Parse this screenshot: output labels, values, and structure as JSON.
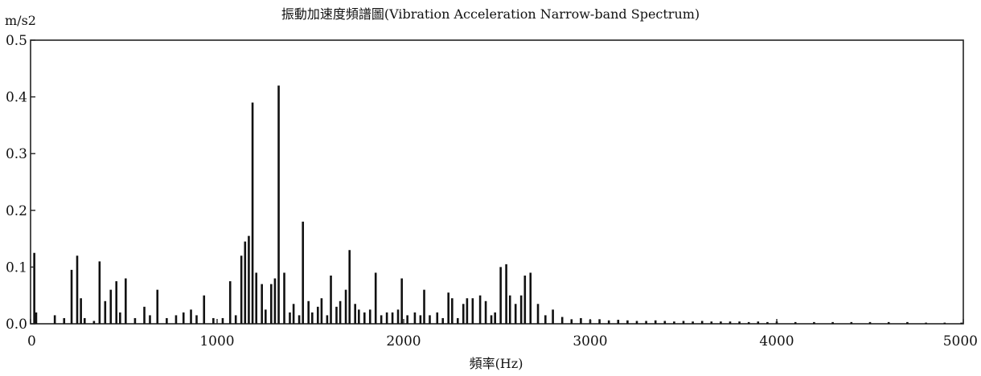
{
  "chart_data": {
    "type": "bar",
    "title": "振動加速度頻譜圖(Vibration Acceleration Narrow-band Spectrum)",
    "ylabel": "m/s2",
    "xlabel": "頻率(Hz)",
    "xlim": [
      0,
      5000
    ],
    "ylim": [
      0,
      0.5
    ],
    "x_ticks": [
      0,
      1000,
      2000,
      3000,
      4000,
      5000
    ],
    "y_ticks": [
      0.0,
      0.1,
      0.2,
      0.3,
      0.4,
      0.5
    ],
    "y_tick_labels": [
      "0.0",
      "0.1",
      "0.2",
      "0.3",
      "0.4",
      "0.5"
    ],
    "grid": false,
    "series": [
      {
        "x": [
          20,
          30,
          130,
          180,
          220,
          250,
          270,
          290,
          340,
          370,
          400,
          430,
          460,
          480,
          510,
          560,
          610,
          640,
          680,
          730,
          780,
          820,
          860,
          890,
          930,
          980,
          1030,
          1070,
          1100,
          1130,
          1150,
          1170,
          1190,
          1210,
          1240,
          1260,
          1290,
          1310,
          1330,
          1360,
          1390,
          1410,
          1440,
          1460,
          1490,
          1510,
          1540,
          1560,
          1590,
          1610,
          1640,
          1660,
          1690,
          1710,
          1740,
          1760,
          1790,
          1820,
          1850,
          1880,
          1910,
          1940,
          1970,
          1990,
          2020,
          2060,
          2090,
          2110,
          2140,
          2180,
          2210,
          2240,
          2260,
          2290,
          2320,
          2340,
          2370,
          2410,
          2440,
          2470,
          2490,
          2520,
          2550,
          2570,
          2600,
          2630,
          2650,
          2680,
          2720,
          2760,
          2800,
          2850,
          2900,
          2950,
          3000,
          3050,
          3100,
          3150,
          3200,
          3250,
          3300,
          3350,
          3400,
          3450,
          3500,
          3550,
          3600,
          3650,
          3700,
          3750,
          3800,
          3850,
          3900,
          3950,
          4000,
          4100,
          4200,
          4300,
          4400,
          4500,
          4600,
          4700,
          4800,
          4900,
          4990
        ],
        "y": [
          0.125,
          0.02,
          0.015,
          0.01,
          0.095,
          0.12,
          0.045,
          0.01,
          0.005,
          0.11,
          0.04,
          0.06,
          0.075,
          0.02,
          0.08,
          0.01,
          0.03,
          0.015,
          0.06,
          0.01,
          0.015,
          0.02,
          0.025,
          0.015,
          0.05,
          0.01,
          0.01,
          0.075,
          0.015,
          0.12,
          0.145,
          0.155,
          0.39,
          0.09,
          0.07,
          0.025,
          0.07,
          0.08,
          0.42,
          0.09,
          0.02,
          0.035,
          0.015,
          0.18,
          0.04,
          0.02,
          0.03,
          0.045,
          0.015,
          0.085,
          0.03,
          0.04,
          0.06,
          0.13,
          0.035,
          0.025,
          0.02,
          0.025,
          0.09,
          0.015,
          0.02,
          0.02,
          0.025,
          0.08,
          0.015,
          0.02,
          0.015,
          0.06,
          0.015,
          0.02,
          0.01,
          0.055,
          0.045,
          0.01,
          0.035,
          0.045,
          0.045,
          0.05,
          0.04,
          0.015,
          0.02,
          0.1,
          0.105,
          0.05,
          0.035,
          0.05,
          0.085,
          0.09,
          0.035,
          0.015,
          0.025,
          0.012,
          0.008,
          0.01,
          0.007,
          0.008,
          0.006,
          0.007,
          0.006,
          0.005,
          0.005,
          0.006,
          0.005,
          0.004,
          0.005,
          0.004,
          0.005,
          0.004,
          0.004,
          0.004,
          0.004,
          0.003,
          0.004,
          0.003,
          0.004,
          0.003,
          0.003,
          0.003,
          0.003,
          0.003,
          0.003,
          0.003,
          0.002,
          0.002,
          0.002
        ]
      }
    ]
  }
}
